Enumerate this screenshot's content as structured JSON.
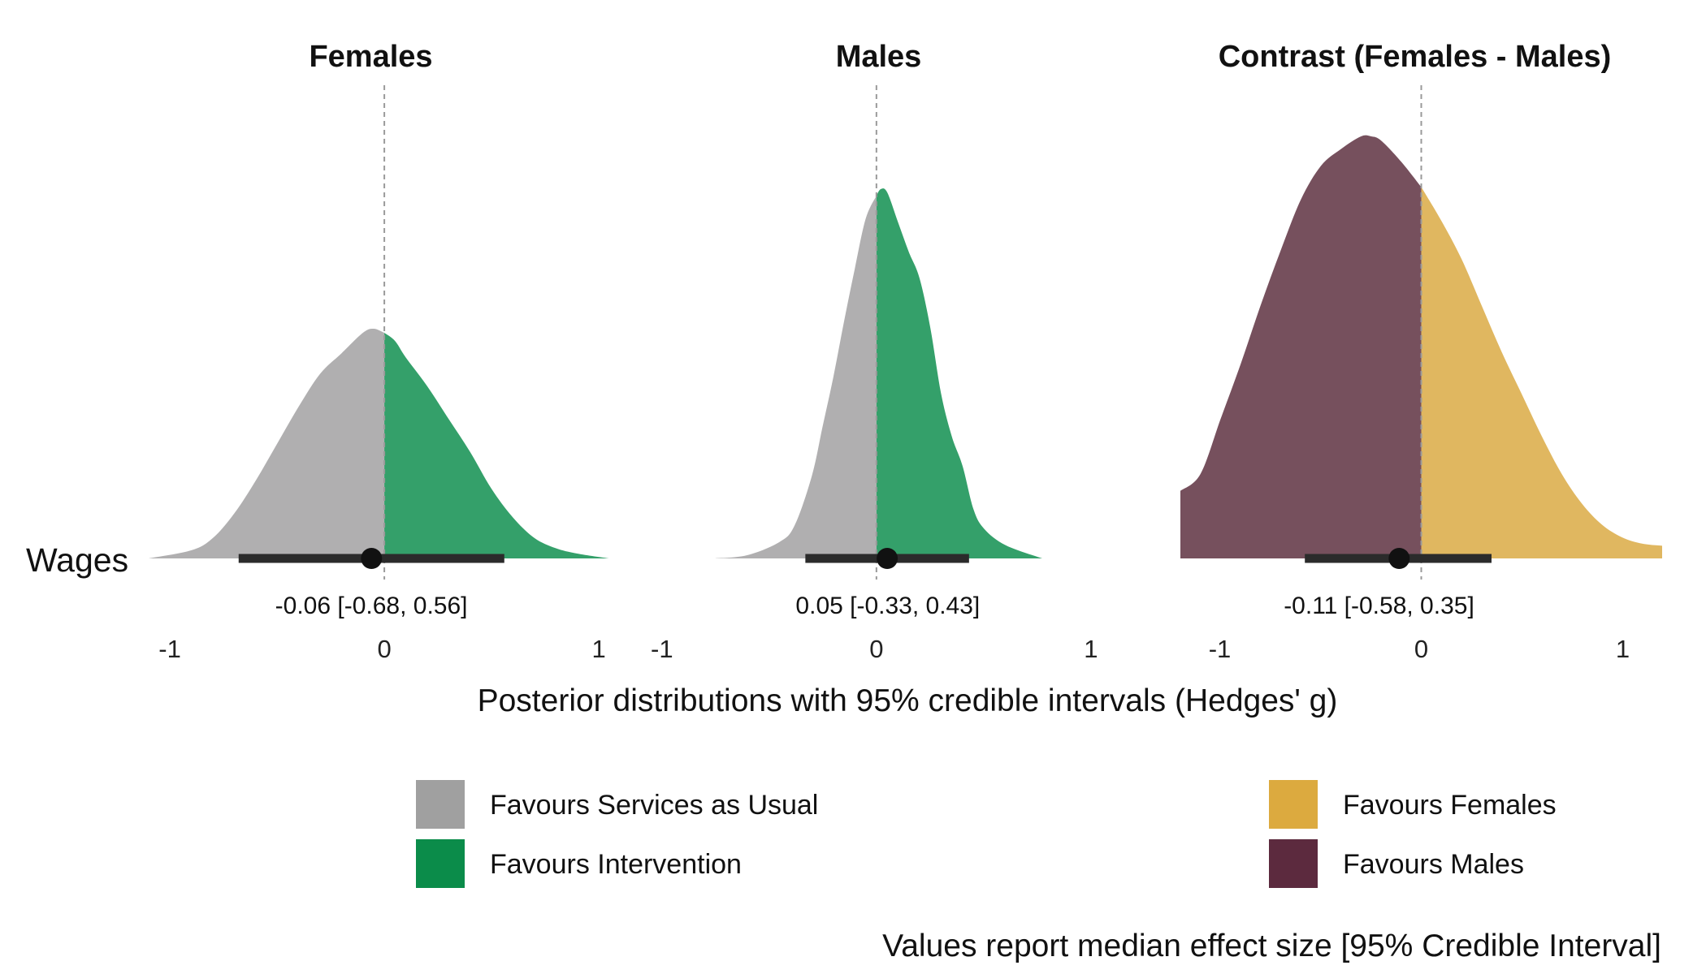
{
  "chart_data": {
    "type": "area",
    "xlabel": "Posterior distributions with 95% credible intervals (Hedges' g)",
    "caption": "Values report median effect size [95% Credible Interval]",
    "row_label": "Wages",
    "legend_placement": "bottom",
    "legend": [
      {
        "key": "sau",
        "label": "Favours Services as Usual",
        "color": "#a0a0a0"
      },
      {
        "key": "intervention",
        "label": "Favours Intervention",
        "color": "#0b8c4a"
      },
      {
        "key": "females",
        "label": "Favours Females",
        "color": "#dcaa3f"
      },
      {
        "key": "males",
        "label": "Favours Males",
        "color": "#5c2a3e"
      }
    ],
    "grid": false,
    "panels": [
      {
        "title": "Females",
        "xlim": [
          -1.1,
          1.05
        ],
        "xticks": [
          -1,
          0,
          1
        ],
        "xtick_labels": [
          "-1",
          "0",
          "1"
        ],
        "fill_below": {
          "key": "sau",
          "color": "#b0afb0"
        },
        "fill_above": {
          "key": "intervention",
          "color": "#34a06a"
        },
        "density_peak": 0.56,
        "density": {
          "x": [
            -1.1,
            -0.9,
            -0.8,
            -0.7,
            -0.6,
            -0.5,
            -0.4,
            -0.3,
            -0.2,
            -0.1,
            -0.05,
            0.0,
            0.05,
            0.1,
            0.2,
            0.3,
            0.4,
            0.5,
            0.6,
            0.7,
            0.8,
            0.9,
            1.05
          ],
          "y": [
            0.0,
            0.02,
            0.05,
            0.11,
            0.19,
            0.28,
            0.37,
            0.45,
            0.5,
            0.55,
            0.56,
            0.55,
            0.53,
            0.49,
            0.42,
            0.34,
            0.26,
            0.17,
            0.1,
            0.05,
            0.025,
            0.012,
            0.0
          ]
        },
        "median": -0.06,
        "ci": [
          -0.68,
          0.56
        ],
        "summary_text": "-0.06 [-0.68, 0.56]"
      },
      {
        "title": "Males",
        "xlim": [
          -0.75,
          0.77
        ],
        "xticks": [
          -1,
          0,
          1
        ],
        "xtick_labels": [
          "-1",
          "0",
          "1"
        ],
        "fill_below": {
          "key": "sau",
          "color": "#b0afb0"
        },
        "fill_above": {
          "key": "intervention",
          "color": "#34a06a"
        },
        "density_peak": 1.12,
        "density": {
          "x": [
            -0.75,
            -0.6,
            -0.45,
            -0.38,
            -0.3,
            -0.25,
            -0.2,
            -0.15,
            -0.1,
            -0.05,
            0.0,
            0.02,
            0.05,
            0.1,
            0.15,
            0.2,
            0.25,
            0.3,
            0.35,
            0.4,
            0.45,
            0.5,
            0.6,
            0.77
          ],
          "y": [
            0.0,
            0.01,
            0.05,
            0.1,
            0.25,
            0.4,
            0.55,
            0.72,
            0.88,
            1.03,
            1.1,
            1.12,
            1.11,
            1.02,
            0.93,
            0.85,
            0.7,
            0.5,
            0.37,
            0.28,
            0.15,
            0.09,
            0.04,
            0.0
          ]
        },
        "median": 0.05,
        "ci": [
          -0.33,
          0.43
        ],
        "summary_text": "0.05 [-0.33, 0.43]"
      },
      {
        "title": "Contrast (Females - Males)",
        "xlim": [
          -1.2,
          1.2
        ],
        "xticks": [
          -1,
          0,
          1
        ],
        "xtick_labels": [
          "-1",
          "0",
          "1"
        ],
        "fill_below": {
          "key": "males",
          "color": "#76505d"
        },
        "fill_above": {
          "key": "females",
          "color": "#e0b760"
        },
        "density_peak": 1.0,
        "density": {
          "x": [
            -1.2,
            -1.1,
            -1.0,
            -0.9,
            -0.8,
            -0.7,
            -0.6,
            -0.5,
            -0.4,
            -0.3,
            -0.25,
            -0.2,
            -0.1,
            0.0,
            0.1,
            0.2,
            0.3,
            0.4,
            0.5,
            0.6,
            0.7,
            0.8,
            0.9,
            1.0,
            1.1,
            1.2
          ],
          "y": [
            0.16,
            0.2,
            0.33,
            0.46,
            0.6,
            0.73,
            0.85,
            0.93,
            0.97,
            1.0,
            1.0,
            0.99,
            0.94,
            0.88,
            0.8,
            0.71,
            0.6,
            0.49,
            0.39,
            0.29,
            0.2,
            0.13,
            0.08,
            0.05,
            0.035,
            0.03
          ]
        },
        "median": -0.11,
        "ci": [
          -0.58,
          0.35
        ],
        "summary_text": "-0.11 [-0.58, 0.35]"
      }
    ]
  }
}
